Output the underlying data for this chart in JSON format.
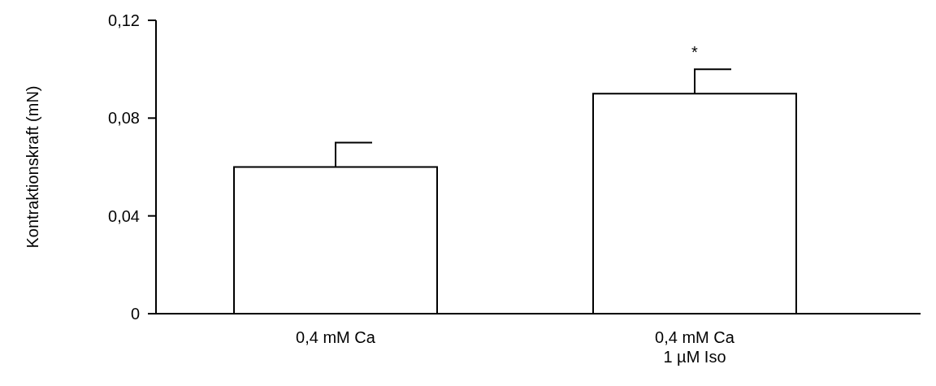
{
  "chart_data": {
    "type": "bar",
    "ylabel": "Kontraktionskraft (mN)",
    "categories": [
      "0,4 mM Ca",
      "0,4 mM Ca\n1 µM Iso"
    ],
    "values": [
      0.06,
      0.09
    ],
    "errors": [
      [
        0.06,
        0.07
      ],
      [
        0.09,
        0.1
      ]
    ],
    "color": "#ffffff",
    "ylim": [
      0,
      0.12
    ],
    "yticks": [
      {
        "value": 0,
        "label": "0"
      },
      {
        "value": 0.04,
        "label": "0,04"
      },
      {
        "value": 0.08,
        "label": "0,08"
      },
      {
        "value": 0.12,
        "label": "0,12"
      }
    ],
    "annotations": [
      "*"
    ],
    "grid": false
  }
}
